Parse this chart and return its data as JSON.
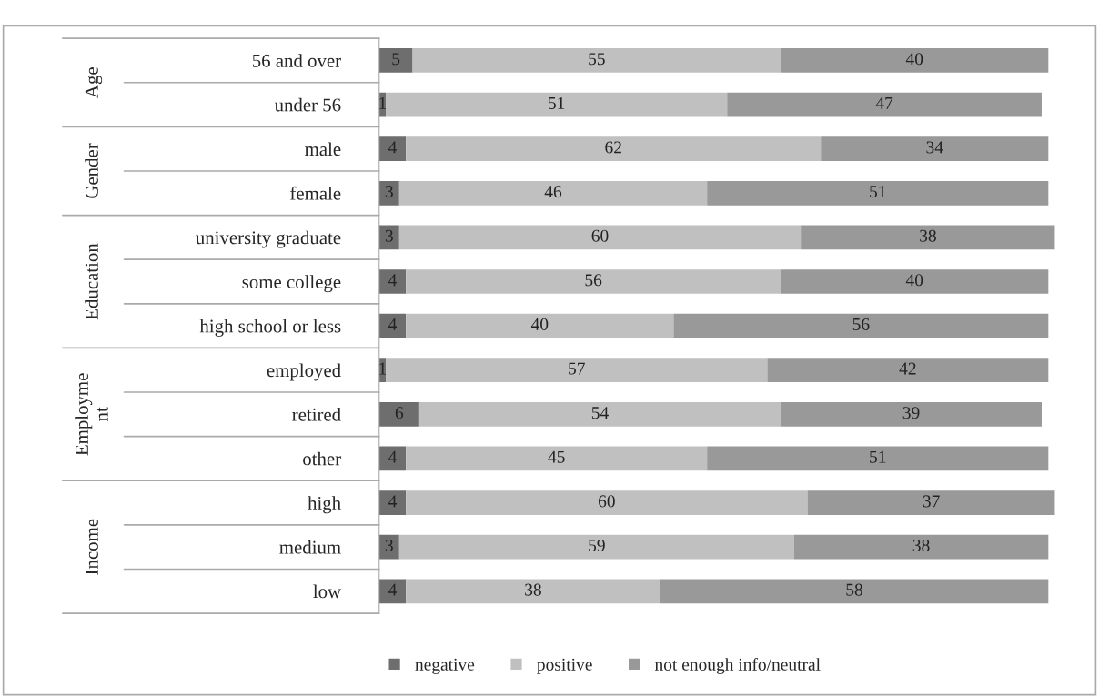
{
  "chart_data": {
    "type": "bar",
    "orientation": "horizontal",
    "stacked": true,
    "data_labels": true,
    "grid": false,
    "legend": "bottom",
    "categories": [
      "56 and over",
      "under 56",
      "male",
      "female",
      "university graduate",
      "some college",
      "high school or less",
      "employed",
      "retired",
      "other",
      "high",
      "medium",
      "low"
    ],
    "series": [
      {
        "name": "negative",
        "color": "#6e6e6e",
        "values": [
          5,
          1,
          4,
          3,
          3,
          4,
          4,
          1,
          6,
          4,
          4,
          3,
          4
        ]
      },
      {
        "name": "positive",
        "color": "#c0c0c0",
        "values": [
          55,
          51,
          62,
          46,
          60,
          56,
          40,
          57,
          54,
          45,
          60,
          59,
          38
        ]
      },
      {
        "name": "not enough info/neutral",
        "color": "#999999",
        "values": [
          40,
          47,
          34,
          51,
          38,
          40,
          56,
          42,
          39,
          51,
          37,
          38,
          58
        ]
      }
    ],
    "annotations": [
      "Age",
      "Gender",
      "Education",
      "Employme\nnt",
      "Income"
    ]
  }
}
